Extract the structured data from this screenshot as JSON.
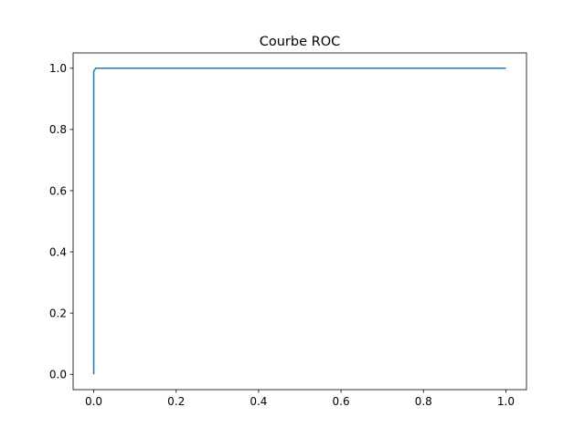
{
  "chart_data": {
    "type": "line",
    "title": "Courbe ROC",
    "xlabel": "",
    "ylabel": "",
    "xlim": [
      -0.05,
      1.05
    ],
    "ylim": [
      -0.05,
      1.05
    ],
    "x_ticks": [
      0.0,
      0.2,
      0.4,
      0.6,
      0.8,
      1.0
    ],
    "y_ticks": [
      0.0,
      0.2,
      0.4,
      0.6,
      0.8,
      1.0
    ],
    "x_tick_labels": [
      "0.0",
      "0.2",
      "0.4",
      "0.6",
      "0.8",
      "1.0"
    ],
    "y_tick_labels": [
      "0.0",
      "0.2",
      "0.4",
      "0.6",
      "0.8",
      "1.0"
    ],
    "grid": false,
    "legend": "none",
    "series": [
      {
        "color": "#1f77b4",
        "x": [
          0.0,
          0.0,
          0.005,
          1.0
        ],
        "y": [
          0.0,
          0.99,
          1.0,
          1.0
        ]
      }
    ]
  }
}
